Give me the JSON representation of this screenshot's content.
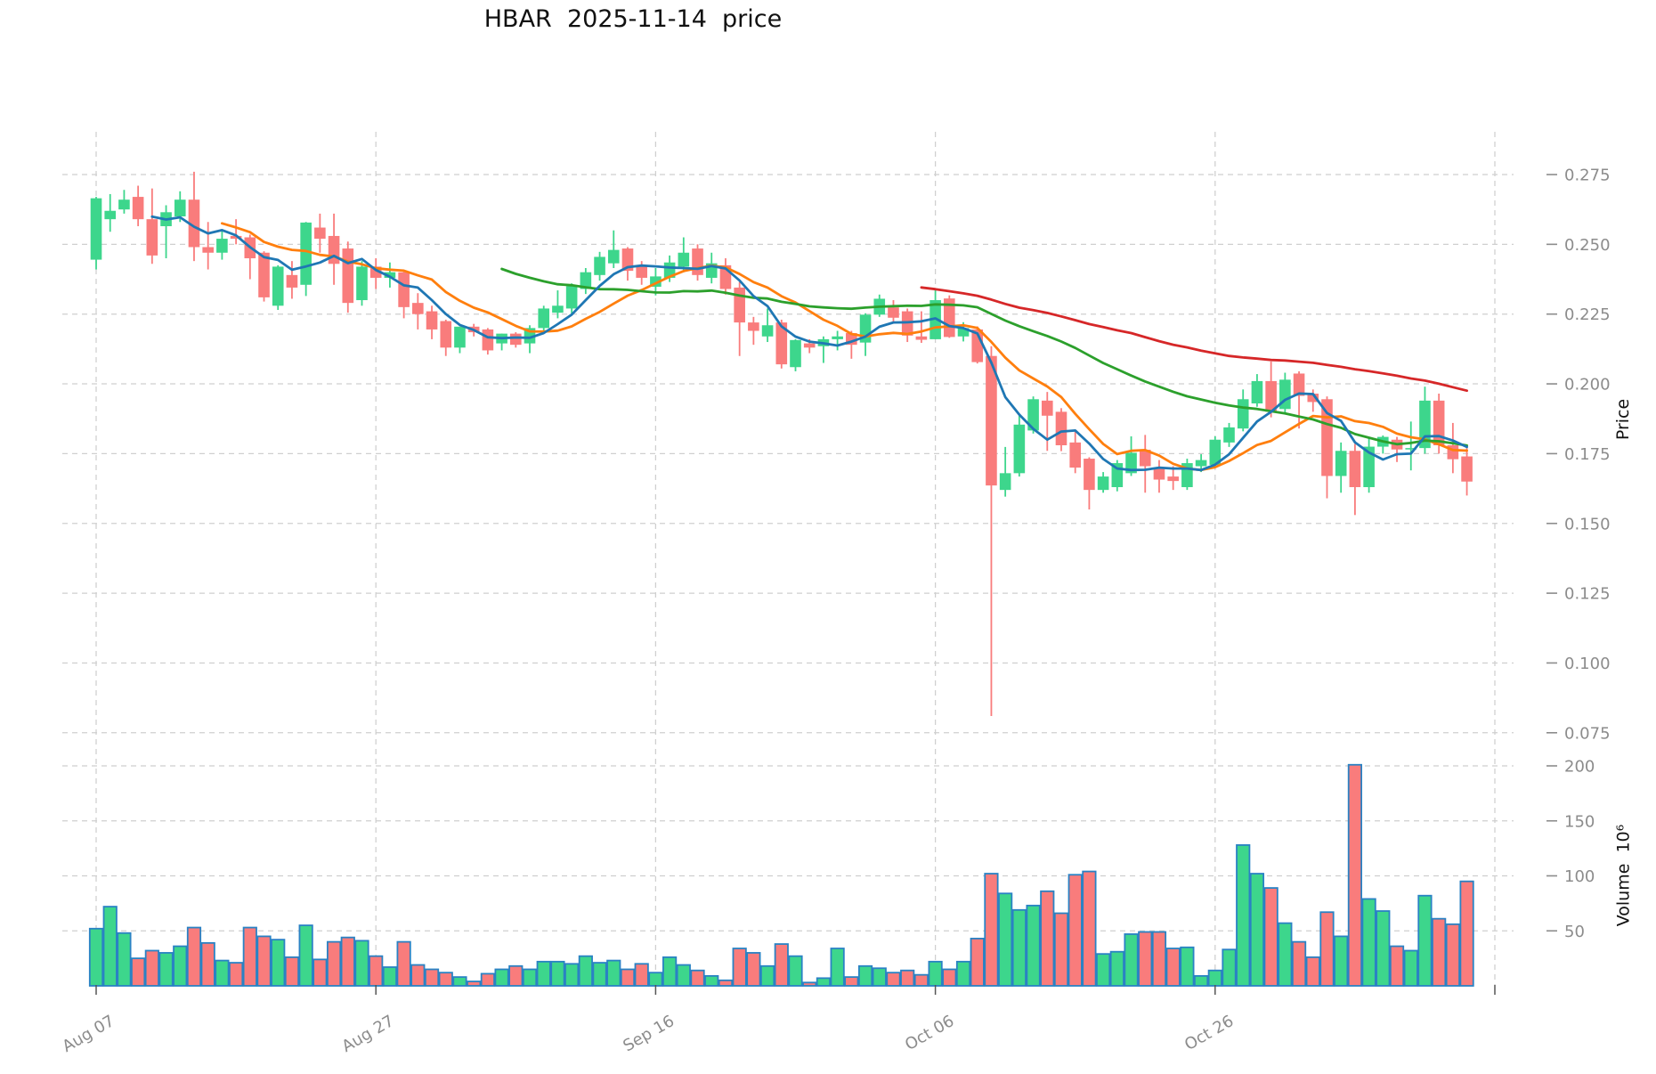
{
  "title": "HBAR  2025-11-14  price",
  "chart_data": {
    "type": "candlestick",
    "symbol": "HBAR",
    "as_of_date": "2025-11-14",
    "title": "HBAR  2025-11-14  price",
    "price_axis": {
      "label": "Price",
      "ticks": [
        0.275,
        0.25,
        0.225,
        0.2,
        0.175,
        0.15,
        0.125,
        0.1,
        0.075
      ],
      "tick_labels": [
        "0.275",
        "0.250",
        "0.225",
        "0.200",
        "0.175",
        "0.150",
        "0.125",
        "0.100",
        "0.075"
      ]
    },
    "volume_axis": {
      "label": "Volume  10⁶",
      "ticks": [
        50,
        100,
        150,
        200
      ],
      "tick_labels": [
        "50",
        "100",
        "150",
        "200"
      ]
    },
    "x_axis": {
      "tick_labels": [
        "Aug 07",
        "Aug 27",
        "Sep 16",
        "Oct 06",
        "Oct 26"
      ],
      "tick_indices": [
        0,
        20,
        40,
        60,
        80
      ],
      "unlabeled_gridline_index": 100
    },
    "legend_position": "none",
    "grid": true,
    "dates": [
      "2025-08-07",
      "2025-08-08",
      "2025-08-09",
      "2025-08-10",
      "2025-08-11",
      "2025-08-12",
      "2025-08-13",
      "2025-08-14",
      "2025-08-15",
      "2025-08-16",
      "2025-08-17",
      "2025-08-18",
      "2025-08-19",
      "2025-08-20",
      "2025-08-21",
      "2025-08-22",
      "2025-08-23",
      "2025-08-24",
      "2025-08-25",
      "2025-08-26",
      "2025-08-27",
      "2025-08-28",
      "2025-08-29",
      "2025-08-30",
      "2025-08-31",
      "2025-09-01",
      "2025-09-02",
      "2025-09-03",
      "2025-09-04",
      "2025-09-05",
      "2025-09-06",
      "2025-09-07",
      "2025-09-08",
      "2025-09-09",
      "2025-09-10",
      "2025-09-11",
      "2025-09-12",
      "2025-09-13",
      "2025-09-14",
      "2025-09-15",
      "2025-09-16",
      "2025-09-17",
      "2025-09-18",
      "2025-09-19",
      "2025-09-20",
      "2025-09-21",
      "2025-09-22",
      "2025-09-23",
      "2025-09-24",
      "2025-09-25",
      "2025-09-26",
      "2025-09-27",
      "2025-09-28",
      "2025-09-29",
      "2025-09-30",
      "2025-10-01",
      "2025-10-02",
      "2025-10-03",
      "2025-10-04",
      "2025-10-05",
      "2025-10-06",
      "2025-10-07",
      "2025-10-08",
      "2025-10-09",
      "2025-10-10",
      "2025-10-11",
      "2025-10-12",
      "2025-10-13",
      "2025-10-14",
      "2025-10-15",
      "2025-10-16",
      "2025-10-17",
      "2025-10-18",
      "2025-10-19",
      "2025-10-20",
      "2025-10-21",
      "2025-10-22",
      "2025-10-23",
      "2025-10-24",
      "2025-10-25",
      "2025-10-26",
      "2025-10-27",
      "2025-10-28",
      "2025-10-29",
      "2025-10-30",
      "2025-10-31",
      "2025-11-01",
      "2025-11-02",
      "2025-11-03",
      "2025-11-04",
      "2025-11-05",
      "2025-11-06",
      "2025-11-07",
      "2025-11-08",
      "2025-11-09",
      "2025-11-10",
      "2025-11-11",
      "2025-11-12",
      "2025-11-13"
    ],
    "ohlc": {
      "open": [
        0.2445,
        0.259,
        0.2625,
        0.267,
        0.259,
        0.2565,
        0.26,
        0.266,
        0.249,
        0.247,
        0.253,
        0.2525,
        0.247,
        0.228,
        0.239,
        0.2355,
        0.256,
        0.253,
        0.2485,
        0.23,
        0.242,
        0.238,
        0.24,
        0.229,
        0.226,
        0.2225,
        0.213,
        0.2205,
        0.2195,
        0.2145,
        0.218,
        0.2145,
        0.22,
        0.2255,
        0.227,
        0.234,
        0.239,
        0.2432,
        0.2485,
        0.2425,
        0.2348,
        0.238,
        0.242,
        0.2485,
        0.238,
        0.2425,
        0.2345,
        0.222,
        0.217,
        0.222,
        0.206,
        0.2145,
        0.2135,
        0.216,
        0.2182,
        0.2148,
        0.2248,
        0.2274,
        0.226,
        0.217,
        0.216,
        0.2306,
        0.217,
        0.2195,
        0.21,
        0.162,
        0.168,
        0.1833,
        0.194,
        0.19,
        0.179,
        0.1732,
        0.162,
        0.163,
        0.168,
        0.1764,
        0.17,
        0.1668,
        0.163,
        0.1705,
        0.171,
        0.179,
        0.184,
        0.193,
        0.201,
        0.191,
        0.2037,
        0.1965,
        0.1945,
        0.167,
        0.176,
        0.163,
        0.1775,
        0.18,
        0.1765,
        0.177,
        0.194,
        0.178,
        0.174
      ],
      "high": [
        0.267,
        0.268,
        0.2695,
        0.271,
        0.27,
        0.264,
        0.269,
        0.276,
        0.258,
        0.255,
        0.259,
        0.2535,
        0.2475,
        0.2425,
        0.244,
        0.258,
        0.261,
        0.261,
        0.251,
        0.244,
        0.245,
        0.2435,
        0.2405,
        0.2325,
        0.228,
        0.223,
        0.2205,
        0.2215,
        0.22,
        0.218,
        0.2185,
        0.221,
        0.228,
        0.2335,
        0.236,
        0.2415,
        0.2473,
        0.255,
        0.249,
        0.244,
        0.2415,
        0.246,
        0.2525,
        0.25,
        0.247,
        0.245,
        0.2365,
        0.224,
        0.227,
        0.223,
        0.216,
        0.216,
        0.217,
        0.219,
        0.219,
        0.2253,
        0.232,
        0.23,
        0.227,
        0.226,
        0.234,
        0.2317,
        0.2221,
        0.2206,
        0.2135,
        0.1774,
        0.1886,
        0.1955,
        0.1971,
        0.1913,
        0.1828,
        0.1737,
        0.1684,
        0.1727,
        0.1812,
        0.1817,
        0.1727,
        0.1705,
        0.1732,
        0.1748,
        0.1812,
        0.186,
        0.198,
        0.2035,
        0.208,
        0.204,
        0.2045,
        0.198,
        0.1955,
        0.179,
        0.1785,
        0.181,
        0.1815,
        0.181,
        0.1865,
        0.199,
        0.1965,
        0.186,
        0.177
      ],
      "low": [
        0.241,
        0.2545,
        0.261,
        0.2565,
        0.243,
        0.245,
        0.258,
        0.244,
        0.241,
        0.2445,
        0.25,
        0.2375,
        0.2295,
        0.2265,
        0.2305,
        0.2315,
        0.247,
        0.2355,
        0.2255,
        0.228,
        0.234,
        0.2345,
        0.2235,
        0.2195,
        0.216,
        0.21,
        0.211,
        0.217,
        0.2105,
        0.212,
        0.213,
        0.211,
        0.2185,
        0.2235,
        0.225,
        0.2322,
        0.237,
        0.2415,
        0.237,
        0.2355,
        0.2317,
        0.2365,
        0.24,
        0.237,
        0.236,
        0.232,
        0.21,
        0.214,
        0.215,
        0.2055,
        0.2045,
        0.211,
        0.2075,
        0.212,
        0.209,
        0.21,
        0.224,
        0.222,
        0.215,
        0.2147,
        0.216,
        0.2165,
        0.2152,
        0.2073,
        0.081,
        0.1596,
        0.1668,
        0.1822,
        0.176,
        0.1759,
        0.168,
        0.155,
        0.161,
        0.1615,
        0.167,
        0.161,
        0.161,
        0.162,
        0.162,
        0.1684,
        0.17,
        0.1774,
        0.183,
        0.1918,
        0.188,
        0.189,
        0.184,
        0.19,
        0.159,
        0.161,
        0.153,
        0.161,
        0.175,
        0.172,
        0.169,
        0.175,
        0.175,
        0.168,
        0.16
      ],
      "close": [
        0.2665,
        0.262,
        0.266,
        0.259,
        0.246,
        0.2615,
        0.266,
        0.249,
        0.247,
        0.252,
        0.252,
        0.245,
        0.231,
        0.242,
        0.2345,
        0.2578,
        0.252,
        0.243,
        0.229,
        0.242,
        0.238,
        0.24,
        0.2275,
        0.225,
        0.2195,
        0.213,
        0.2205,
        0.2185,
        0.212,
        0.218,
        0.214,
        0.22,
        0.227,
        0.228,
        0.235,
        0.24,
        0.2455,
        0.248,
        0.2405,
        0.238,
        0.2385,
        0.2435,
        0.247,
        0.239,
        0.2432,
        0.234,
        0.222,
        0.219,
        0.221,
        0.207,
        0.2157,
        0.213,
        0.216,
        0.217,
        0.214,
        0.2248,
        0.2305,
        0.2237,
        0.2173,
        0.2158,
        0.23,
        0.2168,
        0.22,
        0.2078,
        0.1636,
        0.168,
        0.1854,
        0.1945,
        0.1886,
        0.178,
        0.17,
        0.162,
        0.1668,
        0.1716,
        0.1753,
        0.1705,
        0.1657,
        0.1652,
        0.1716,
        0.1727,
        0.18,
        0.1844,
        0.1945,
        0.201,
        0.19,
        0.2015,
        0.1957,
        0.1935,
        0.167,
        0.176,
        0.163,
        0.1775,
        0.181,
        0.1765,
        0.177,
        0.194,
        0.178,
        0.173,
        0.165
      ]
    },
    "volume": [
      52,
      72,
      48,
      25,
      32,
      30,
      36,
      53,
      39,
      23,
      21,
      53,
      45,
      42,
      26,
      55,
      24,
      40,
      44,
      41,
      27,
      17,
      40,
      19,
      15,
      12,
      8,
      4,
      11,
      15,
      18,
      15,
      22,
      22,
      20,
      27,
      21,
      23,
      15,
      20,
      12,
      26,
      19,
      14,
      9,
      5,
      34,
      30,
      18,
      38,
      27,
      3,
      7,
      34,
      8,
      18,
      16,
      12,
      14,
      10,
      22,
      15,
      22,
      43,
      102,
      84,
      69,
      73,
      86,
      66,
      101,
      104,
      29,
      31,
      47,
      49,
      49,
      34,
      35,
      9,
      14,
      33,
      128,
      102,
      89,
      57,
      40,
      26,
      67,
      45,
      201,
      79,
      68,
      36,
      32,
      82,
      61,
      56,
      95
    ],
    "moving_averages": [
      {
        "name": "MA5",
        "window": 5,
        "color": "#1f77b4"
      },
      {
        "name": "MA10",
        "window": 10,
        "color": "#ff7f0e"
      },
      {
        "name": "MA30",
        "window": 30,
        "color": "#2ca02c"
      },
      {
        "name": "MA60",
        "window": 60,
        "color": "#d62728"
      }
    ],
    "colors": {
      "up": "#3dd68c",
      "down": "#f97c7c",
      "volume_edge": "#2a82c4",
      "grid": "#cfcfcf",
      "tick_text": "#8c8c8c",
      "axis_tick_mark": "#555555",
      "text": "#111111"
    }
  }
}
